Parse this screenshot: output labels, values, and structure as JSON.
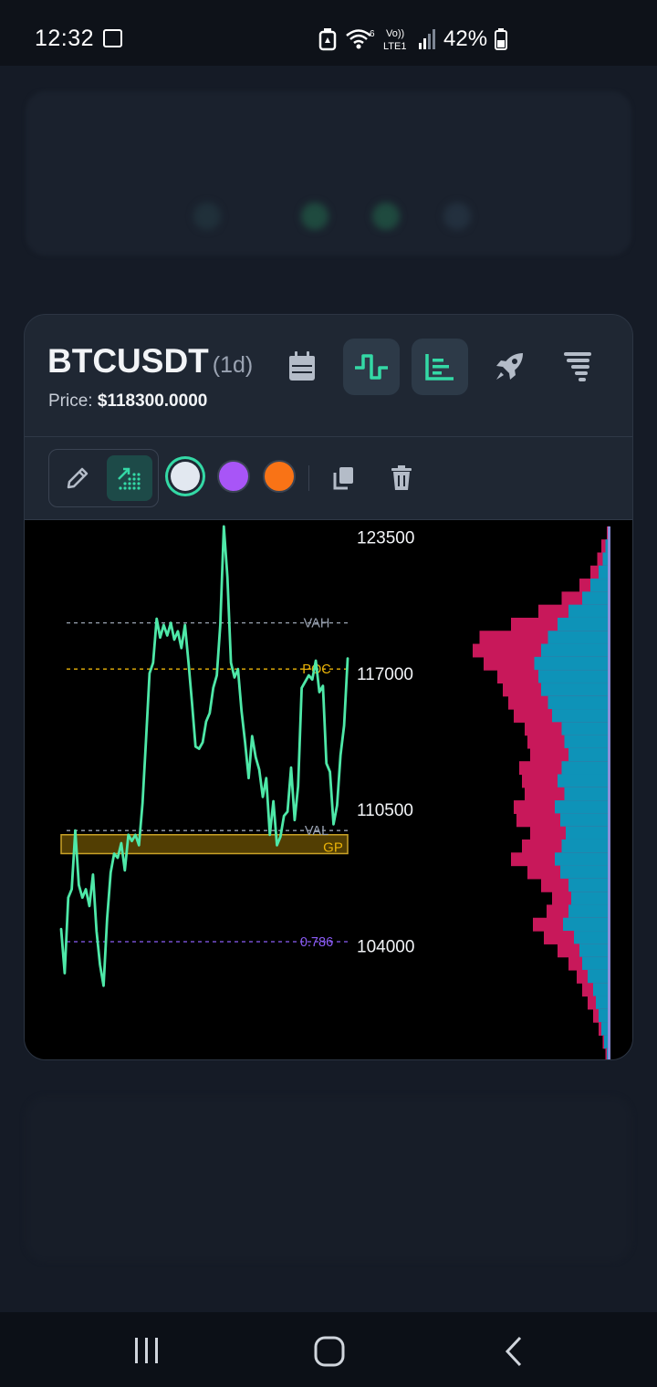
{
  "status_bar": {
    "time": "12:32",
    "battery": "42%",
    "network": "LTE1",
    "icons": [
      "gallery-icon",
      "recycle-icon",
      "wifi-icon",
      "signal-icon",
      "battery-icon"
    ]
  },
  "card": {
    "symbol": "BTCUSDT",
    "interval": "(1d)",
    "price_label": "Price:",
    "price_value": "$118300.0000",
    "header_buttons": [
      {
        "name": "calendar-icon",
        "active": false
      },
      {
        "name": "step-line-icon",
        "active": true
      },
      {
        "name": "volume-profile-icon",
        "active": true
      },
      {
        "name": "rocket-icon",
        "active": false
      },
      {
        "name": "tornado-icon",
        "active": false
      },
      {
        "name": "line-chart-icon",
        "active": false
      }
    ],
    "toolbar": {
      "tools": [
        {
          "name": "pencil-icon",
          "active": false
        },
        {
          "name": "fibonacci-tool-icon",
          "active": true
        }
      ],
      "colors": [
        "#e2e8f0",
        "#a855f7",
        "#f97316"
      ],
      "selected_color": "#e2e8f0"
    }
  },
  "chart_data": {
    "type": "line",
    "ylim": [
      98500,
      124300
    ],
    "yticks": [
      {
        "value": 123500,
        "label": "123500"
      },
      {
        "value": 117000,
        "label": "117000"
      },
      {
        "value": 110500,
        "label": "110500"
      },
      {
        "value": 104000,
        "label": "104000"
      }
    ],
    "series": [
      {
        "color": "#4ee8a8",
        "values": [
          104800,
          102700,
          106300,
          106700,
          109500,
          106900,
          106300,
          106700,
          105900,
          107400,
          104700,
          103100,
          102100,
          105300,
          107500,
          108400,
          108200,
          108900,
          107600,
          109300,
          109000,
          109300,
          108800,
          110800,
          113800,
          117000,
          117500,
          119600,
          118700,
          119300,
          118800,
          119400,
          118600,
          119000,
          118200,
          119300,
          117500,
          115600,
          113500,
          113400,
          113700,
          114700,
          115100,
          116300,
          116900,
          119300,
          124000,
          121600,
          117500,
          116800,
          117200,
          115200,
          113700,
          112000,
          114000,
          113000,
          112400,
          111100,
          112000,
          109300,
          110900,
          108800,
          109200,
          110200,
          110400,
          112500,
          110000,
          111600,
          116300,
          116600,
          116900,
          116700,
          117600,
          116100,
          116400,
          112700,
          112300,
          109800,
          110700,
          113100,
          114500,
          117700
        ]
      }
    ],
    "annotations": [
      {
        "label": "VAH",
        "value": 119400,
        "color": "#9aa3b2",
        "style": "dashed"
      },
      {
        "label": "POC",
        "value": 117200,
        "color": "#eab308",
        "style": "dashed"
      },
      {
        "label": "VAL",
        "value": 109500,
        "color": "#9aa3b2",
        "style": "dashed"
      },
      {
        "label": "0.786",
        "value": 104200,
        "color": "#8b5cf6",
        "style": "dashed"
      }
    ],
    "zones": [
      {
        "label": "GP",
        "from": 108400,
        "to": 109300,
        "fill": "#eab308",
        "stroke": "#c9a227"
      }
    ],
    "volume_profile": {
      "buy_color": "#0e93b8",
      "sell_color": "#c8185a",
      "top": 124000,
      "bottom": 98500,
      "rows": [
        [
          0.02,
          0.01
        ],
        [
          0.06,
          0.03
        ],
        [
          0.09,
          0.05
        ],
        [
          0.14,
          0.08
        ],
        [
          0.22,
          0.14
        ],
        [
          0.35,
          0.2
        ],
        [
          0.52,
          0.3
        ],
        [
          0.72,
          0.38
        ],
        [
          0.95,
          0.45
        ],
        [
          1.0,
          0.5
        ],
        [
          0.92,
          0.55
        ],
        [
          0.82,
          0.52
        ],
        [
          0.78,
          0.5
        ],
        [
          0.74,
          0.45
        ],
        [
          0.7,
          0.42
        ],
        [
          0.62,
          0.35
        ],
        [
          0.6,
          0.33
        ],
        [
          0.58,
          0.3
        ],
        [
          0.66,
          0.35
        ],
        [
          0.64,
          0.38
        ],
        [
          0.62,
          0.33
        ],
        [
          0.7,
          0.4
        ],
        [
          0.68,
          0.36
        ],
        [
          0.58,
          0.32
        ],
        [
          0.64,
          0.35
        ],
        [
          0.72,
          0.4
        ],
        [
          0.6,
          0.36
        ],
        [
          0.5,
          0.3
        ],
        [
          0.42,
          0.28
        ],
        [
          0.46,
          0.3
        ],
        [
          0.56,
          0.34
        ],
        [
          0.48,
          0.26
        ],
        [
          0.38,
          0.22
        ],
        [
          0.3,
          0.2
        ],
        [
          0.24,
          0.16
        ],
        [
          0.2,
          0.12
        ],
        [
          0.16,
          0.1
        ],
        [
          0.12,
          0.08
        ],
        [
          0.08,
          0.06
        ],
        [
          0.05,
          0.04
        ],
        [
          0.03,
          0.02
        ]
      ]
    }
  },
  "nav_bar": {
    "buttons": [
      {
        "name": "recent-apps-icon"
      },
      {
        "name": "home-icon"
      },
      {
        "name": "back-icon"
      }
    ]
  }
}
